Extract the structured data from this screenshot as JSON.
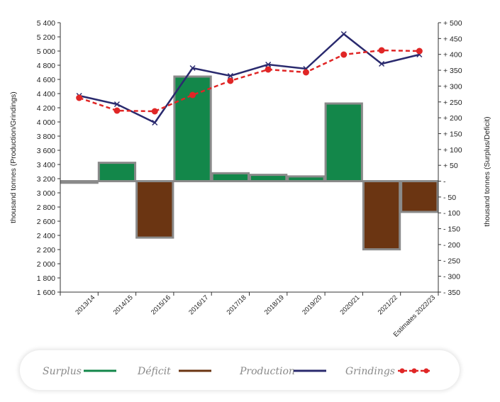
{
  "chart_data": {
    "type": "bar+line",
    "categories": [
      "2013/14",
      "2014/15",
      "2015/16",
      "2016/17",
      "2017/18",
      "2018/19",
      "2019/20",
      "2020/21",
      "2021/22",
      "Estimates 2022/23"
    ],
    "left_axis": {
      "label": "thousand tonnes (Production/Grindings)",
      "min": 1600,
      "max": 5400,
      "step": 200,
      "tick_labels": [
        "1 600",
        "1 800",
        "2 000",
        "2 200",
        "2 400",
        "2 600",
        "2 800",
        "3 000",
        "3 200",
        "3 400",
        "3 600",
        "3 800",
        "4 000",
        "4 200",
        "4 400",
        "4 600",
        "4 800",
        "5 000",
        "5 200",
        "5 400"
      ]
    },
    "right_axis": {
      "label": "thousand tonnes (Surplus/Deficit)",
      "min": -350,
      "max": 500,
      "step": 50,
      "tick_labels": [
        "- 350",
        "- 300",
        "- 250",
        "- 200",
        "- 150",
        "- 100",
        "- 50",
        "-",
        "+ 50",
        "+ 100",
        "+ 150",
        "+ 200",
        "+ 250",
        "+ 300",
        "+ 350",
        "+ 400",
        "+ 450",
        "+ 500"
      ]
    },
    "balance": [
      -5,
      58,
      -178,
      330,
      25,
      20,
      15,
      245,
      -215,
      -97
    ],
    "series": [
      {
        "name": "Production",
        "axis": "left",
        "values": [
          4370,
          4250,
          3990,
          4760,
          4650,
          4810,
          4750,
          5240,
          4820,
          4950
        ]
      },
      {
        "name": "Grindings",
        "axis": "left",
        "values": [
          4340,
          4160,
          4150,
          4380,
          4580,
          4740,
          4700,
          4950,
          5010,
          5000
        ]
      }
    ],
    "legend": [
      {
        "label": "Surplus",
        "color": "#13874a",
        "style": "bar"
      },
      {
        "label": "Déficit",
        "color": "#6b3512",
        "style": "bar"
      },
      {
        "label": "Production",
        "color": "#2a2a6e",
        "style": "line"
      },
      {
        "label": "Grindings",
        "color": "#e02626",
        "style": "dotted-marker"
      }
    ],
    "colors": {
      "surplus": "#13874a",
      "deficit": "#6b3512",
      "bar_border": "#8a8a8a",
      "production": "#2a2a6e",
      "grindings": "#e02626"
    }
  }
}
